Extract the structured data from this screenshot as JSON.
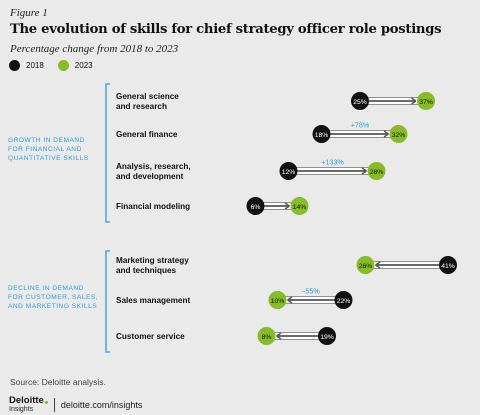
{
  "figure_label": "Figure 1",
  "title": "The evolution of skills for chief strategy officer role postings",
  "subtitle": "Percentage change from 2018 to 2023",
  "colors": {
    "y2018": "#111111",
    "y2023": "#86bc25",
    "accent": "#2a9fd8"
  },
  "source": "Source: Deloitte analysis.",
  "footer": {
    "brand": "Deloitte",
    "brand_sub": "Insights",
    "url": "deloitte.com/insights"
  },
  "chart_data": {
    "type": "dumbbell",
    "legend": [
      "2018",
      "2023"
    ],
    "groups": [
      {
        "label": [
          "GROWTH IN DEMAND",
          "FOR FINANCIAL AND",
          "QUANTITATIVE SKILLS"
        ]
      },
      {
        "label": [
          "DECLINE IN DEMAND",
          "FOR CUSTOMER, SALES,",
          "AND MARKETING SKILLS"
        ]
      }
    ],
    "rows": [
      {
        "group": 0,
        "label": [
          "General science",
          "and research"
        ],
        "v2018": 25,
        "v2023": 37,
        "label2018": "25%",
        "label2023": "37%",
        "change": ""
      },
      {
        "group": 0,
        "label": [
          "General finance"
        ],
        "v2018": 18,
        "v2023": 32,
        "label2018": "18%",
        "label2023": "32%",
        "change": "+78%"
      },
      {
        "group": 0,
        "label": [
          "Analysis, research,",
          "and development"
        ],
        "v2018": 12,
        "v2023": 28,
        "label2018": "12%",
        "label2023": "28%",
        "change": "+133%"
      },
      {
        "group": 0,
        "label": [
          "Financial modeling"
        ],
        "v2018": 6,
        "v2023": 14,
        "label2018": "6%",
        "label2023": "14%",
        "change": ""
      },
      {
        "group": 1,
        "label": [
          "Marketing strategy",
          "and techniques"
        ],
        "v2018": 41,
        "v2023": 26,
        "label2018": "41%",
        "label2023": "26%",
        "change": ""
      },
      {
        "group": 1,
        "label": [
          "Sales management"
        ],
        "v2018": 22,
        "v2023": 10,
        "label2018": "22%",
        "label2023": "10%",
        "change": "−55%"
      },
      {
        "group": 1,
        "label": [
          "Customer service"
        ],
        "v2018": 19,
        "v2023": 8,
        "label2018": "19%",
        "label2023": "8%",
        "change": ""
      }
    ]
  }
}
